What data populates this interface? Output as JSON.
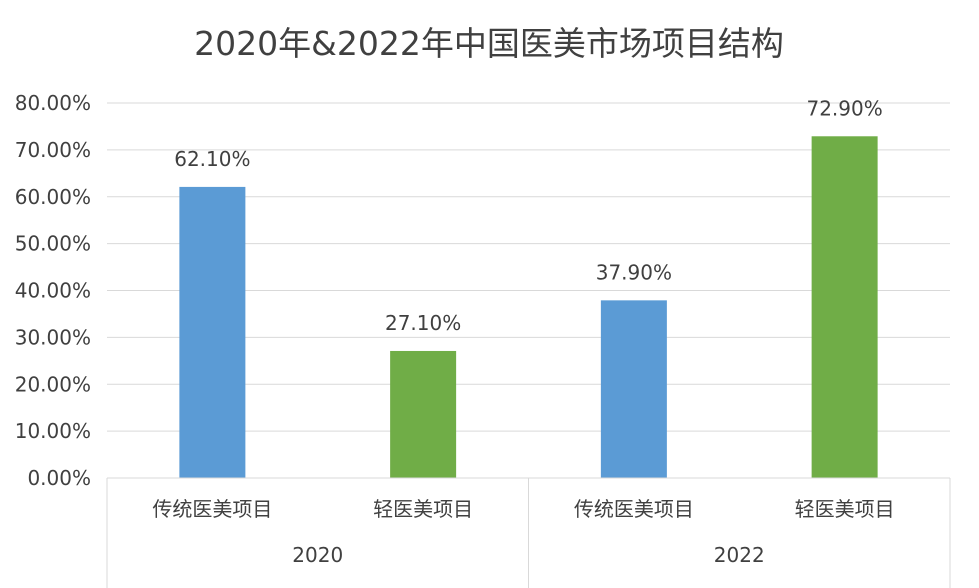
{
  "chart_data": {
    "type": "bar",
    "title": "2020年&2022年中国医美市场项目结构",
    "groups": [
      {
        "label": "2020",
        "bars": [
          {
            "category": "传统医美项目",
            "value": 62.1,
            "label": "62.10%",
            "color": "#5b9bd5"
          },
          {
            "category": "轻医美项目",
            "value": 27.1,
            "label": "27.10%",
            "color": "#70ad47"
          }
        ]
      },
      {
        "label": "2022",
        "bars": [
          {
            "category": "传统医美项目",
            "value": 37.9,
            "label": "37.90%",
            "color": "#5b9bd5"
          },
          {
            "category": "轻医美项目",
            "value": 72.9,
            "label": "72.90%",
            "color": "#70ad47"
          }
        ]
      }
    ],
    "ylim": [
      0,
      80
    ],
    "yticks": [
      "0.00%",
      "10.00%",
      "20.00%",
      "30.00%",
      "40.00%",
      "50.00%",
      "60.00%",
      "70.00%",
      "80.00%"
    ],
    "grid": true
  }
}
